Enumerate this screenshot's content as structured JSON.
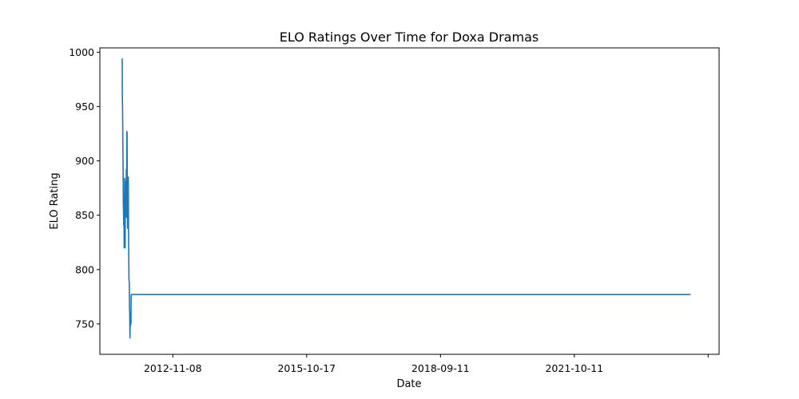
{
  "chart_data": {
    "type": "line",
    "title": "ELO Ratings Over Time for Doxa Dramas",
    "xlabel": "Date",
    "ylabel": "ELO Rating",
    "xlim": [
      "2011-03-21",
      "2025-03-29"
    ],
    "ylim": [
      722,
      1004
    ],
    "x_ticks": [
      "2012-11-08",
      "2015-10-17",
      "2018-09-11",
      "2021-10-11",
      ""
    ],
    "y_ticks": [
      750,
      800,
      850,
      900,
      950,
      1000
    ],
    "grid": false,
    "series": [
      {
        "color": "#1f77b4",
        "points": [
          [
            "2011-09-18",
            994
          ],
          [
            "2011-09-22",
            994
          ],
          [
            "2011-09-23",
            960
          ],
          [
            "2011-09-25",
            947
          ],
          [
            "2011-09-27",
            917
          ],
          [
            "2011-09-29",
            893
          ],
          [
            "2011-10-01",
            860
          ],
          [
            "2011-10-02",
            857
          ],
          [
            "2011-10-04",
            841
          ],
          [
            "2011-10-06",
            850
          ],
          [
            "2011-10-08",
            820
          ],
          [
            "2011-10-10",
            845
          ],
          [
            "2011-10-12",
            884
          ],
          [
            "2011-10-14",
            855
          ],
          [
            "2011-10-16",
            820
          ],
          [
            "2011-10-18",
            881
          ],
          [
            "2011-10-20",
            850
          ],
          [
            "2011-10-22",
            877
          ],
          [
            "2011-10-24",
            851
          ],
          [
            "2011-10-26",
            892
          ],
          [
            "2011-10-28",
            848
          ],
          [
            "2011-10-30",
            927
          ],
          [
            "2011-11-01",
            926
          ],
          [
            "2011-11-03",
            868
          ],
          [
            "2011-11-05",
            838
          ],
          [
            "2011-11-07",
            882
          ],
          [
            "2011-11-09",
            842
          ],
          [
            "2011-11-11",
            885
          ],
          [
            "2011-11-13",
            836
          ],
          [
            "2011-11-15",
            812
          ],
          [
            "2011-11-17",
            790
          ],
          [
            "2011-11-19",
            789
          ],
          [
            "2011-11-21",
            766
          ],
          [
            "2011-11-23",
            758
          ],
          [
            "2011-11-25",
            737
          ],
          [
            "2011-11-27",
            757
          ],
          [
            "2011-11-29",
            748
          ],
          [
            "2011-12-01",
            760
          ],
          [
            "2011-12-03",
            750
          ],
          [
            "2011-12-05",
            777
          ],
          [
            "2024-08-06",
            777
          ]
        ]
      }
    ]
  }
}
